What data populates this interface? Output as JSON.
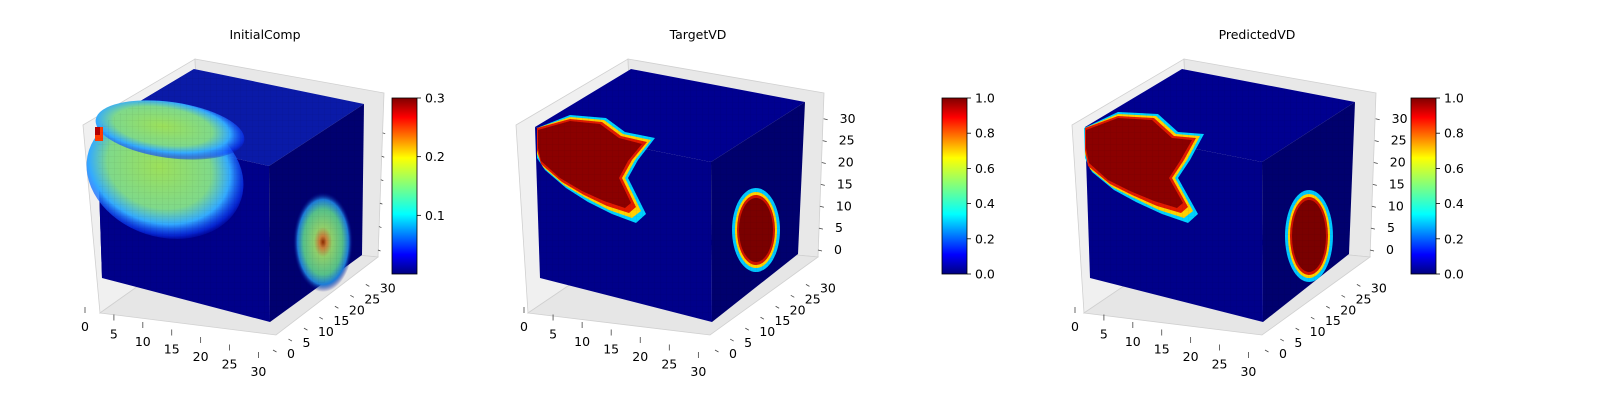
{
  "chart_data": [
    {
      "type": "heatmap",
      "plot_kind": "3D voxel cube",
      "title": "InitialComp",
      "x_ticks": [
        "0",
        "5",
        "10",
        "15",
        "20",
        "25",
        "30"
      ],
      "y_ticks": [
        "0",
        "5",
        "10",
        "15",
        "20",
        "25",
        "30"
      ],
      "z_ticks": [
        "",
        "",
        "",
        "",
        "",
        ""
      ],
      "xlim": [
        0,
        32
      ],
      "ylim": [
        0,
        32
      ],
      "zlim": [
        0,
        32
      ],
      "colormap": "jet",
      "colorbar": {
        "min": 0.0,
        "max": 0.3,
        "ticks": [
          "0.1",
          "0.2",
          "0.3"
        ],
        "tick_values": [
          0.1,
          0.2,
          0.3
        ]
      },
      "features": {
        "top_blob_value": 0.18,
        "top_peak_corner_value": 0.3,
        "side_blob_value": 0.18,
        "side_peak_value": 0.3,
        "background_value": 0.0
      }
    },
    {
      "type": "heatmap",
      "plot_kind": "3D voxel cube",
      "title": "TargetVD",
      "x_ticks": [
        "0",
        "5",
        "10",
        "15",
        "20",
        "25",
        "30"
      ],
      "y_ticks": [
        "0",
        "5",
        "10",
        "15",
        "20",
        "25",
        "30"
      ],
      "z_ticks": [
        "0",
        "5",
        "10",
        "15",
        "20",
        "25",
        "30"
      ],
      "xlim": [
        0,
        32
      ],
      "ylim": [
        0,
        32
      ],
      "zlim": [
        0,
        32
      ],
      "colormap": "jet",
      "colorbar": {
        "min": 0.0,
        "max": 1.0,
        "ticks": [
          "0.0",
          "0.2",
          "0.4",
          "0.6",
          "0.8",
          "1.0"
        ],
        "tick_values": [
          0.0,
          0.2,
          0.4,
          0.6,
          0.8,
          1.0
        ]
      },
      "features": {
        "region_value": 1.0,
        "background_value": 0.0
      }
    },
    {
      "type": "heatmap",
      "plot_kind": "3D voxel cube",
      "title": "PredictedVD",
      "x_ticks": [
        "0",
        "5",
        "10",
        "15",
        "20",
        "25",
        "30"
      ],
      "y_ticks": [
        "0",
        "5",
        "10",
        "15",
        "20",
        "25",
        "30"
      ],
      "z_ticks": [
        "0",
        "5",
        "10",
        "15",
        "20",
        "25",
        "30"
      ],
      "xlim": [
        0,
        32
      ],
      "ylim": [
        0,
        32
      ],
      "zlim": [
        0,
        32
      ],
      "colormap": "jet",
      "colorbar": {
        "min": 0.0,
        "max": 1.0,
        "ticks": [
          "0.0",
          "0.2",
          "0.4",
          "0.6",
          "0.8",
          "1.0"
        ],
        "tick_values": [
          0.0,
          0.2,
          0.4,
          0.6,
          0.8,
          1.0
        ]
      },
      "features": {
        "region_value": 1.0,
        "background_value": 0.0
      }
    }
  ]
}
